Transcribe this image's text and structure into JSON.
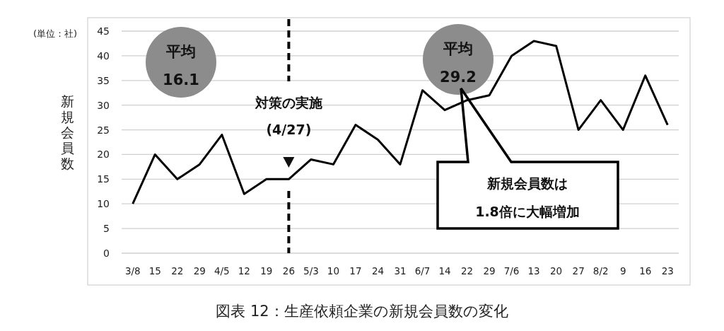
{
  "chart_data": {
    "type": "line",
    "title": "図表 12：生産依頼企業の新規会員数の変化",
    "ylabel": "新規会員数",
    "categories": [
      "3/8",
      "15",
      "22",
      "29",
      "4/5",
      "12",
      "19",
      "26",
      "5/3",
      "10",
      "17",
      "24",
      "31",
      "6/7",
      "14",
      "22",
      "29",
      "7/6",
      "13",
      "20",
      "27",
      "8/2",
      "9",
      "16",
      "23"
    ],
    "series": [
      {
        "color": "#000000",
        "values": [
          10,
          20,
          15,
          18,
          24,
          12,
          15,
          15,
          19,
          18,
          26,
          23,
          18,
          33,
          29,
          31,
          32,
          40,
          43,
          42,
          25,
          31,
          25,
          36,
          26
        ]
      }
    ],
    "ylim": [
      0,
      45
    ],
    "yticks": [
      0,
      5,
      10,
      15,
      20,
      25,
      30,
      35,
      40,
      45
    ],
    "grid": "y",
    "marker": "none",
    "line_style": "solid",
    "ref_lines": [
      {
        "axis": "x",
        "value": "26",
        "label": "対策の実施\n(4/27)",
        "color": "#000000",
        "line_style": "dashed"
      }
    ],
    "annotations": [
      "(単位：社)",
      "平均\n16.1",
      "平均\n29.2",
      "新規会員数は\n1.8倍に大幅増加"
    ]
  }
}
